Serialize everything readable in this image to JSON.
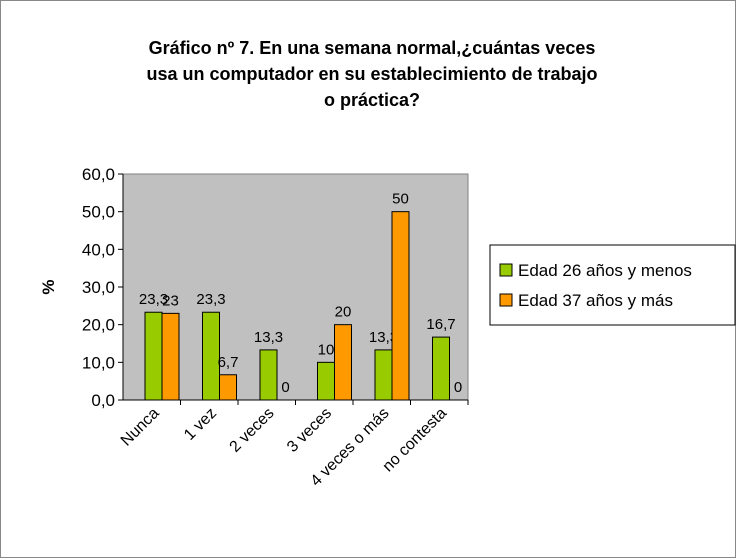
{
  "chart_data": {
    "type": "bar",
    "title": [
      "Gráfico nº 7. En una semana normal,¿cuántas veces",
      "usa un computador en su establecimiento de trabajo",
      "o práctica?"
    ],
    "y_label": "%",
    "categories": [
      "Nunca",
      "1 vez",
      "2 veces",
      "3 veces",
      "4 veces o más",
      "no contesta"
    ],
    "series": [
      {
        "name": "Edad 26 años y menos",
        "color": "#99cc00",
        "values": [
          23.3,
          23.3,
          13.3,
          10,
          13.3,
          16.7
        ],
        "value_labels": [
          "23,3",
          "23,3",
          "13,3",
          "10",
          "13,3",
          "16,7"
        ]
      },
      {
        "name": "Edad 37 años y más",
        "color": "#ff9900",
        "values": [
          23,
          6.7,
          0,
          20,
          50,
          0
        ],
        "value_labels": [
          "23",
          "6,7",
          "0",
          "20",
          "50",
          "0"
        ]
      }
    ],
    "ylim": [
      0,
      60
    ],
    "yticks": [
      {
        "value": 0,
        "label": "0,0"
      },
      {
        "value": 10,
        "label": "10,0"
      },
      {
        "value": 20,
        "label": "20,0"
      },
      {
        "value": 30,
        "label": "30,0"
      },
      {
        "value": 40,
        "label": "40,0"
      },
      {
        "value": 50,
        "label": "50,0"
      },
      {
        "value": 60,
        "label": "60,0"
      }
    ],
    "grid": false,
    "plot_background": "#c0c0c0",
    "legend": "right"
  }
}
